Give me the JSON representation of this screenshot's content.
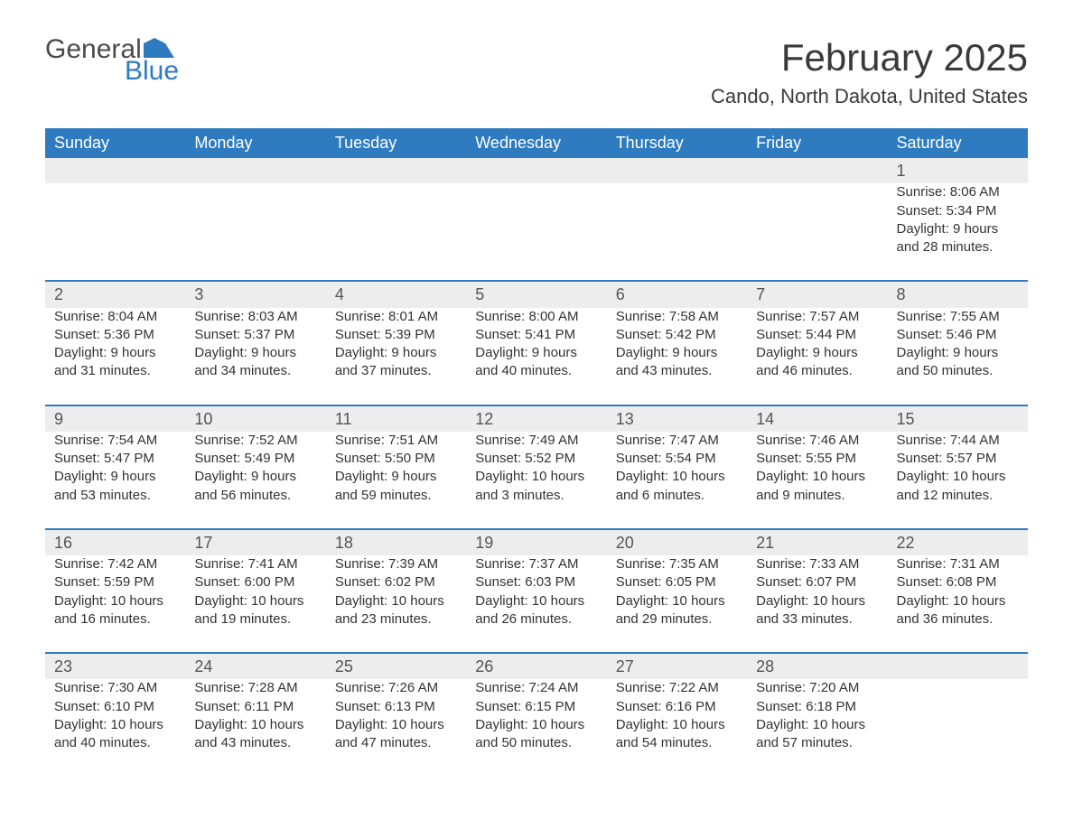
{
  "logo": {
    "general": "General",
    "blue": "Blue",
    "flag_color": "#2e7bbf"
  },
  "title": "February 2025",
  "subtitle": "Cando, North Dakota, United States",
  "colors": {
    "header_bg": "#2e7bbf",
    "header_text": "#ffffff",
    "daynum_bg": "#ededed",
    "text": "#333333",
    "page_bg": "#ffffff",
    "rule": "#2e7bbf"
  },
  "weekdays": [
    "Sunday",
    "Monday",
    "Tuesday",
    "Wednesday",
    "Thursday",
    "Friday",
    "Saturday"
  ],
  "weeks": [
    [
      null,
      null,
      null,
      null,
      null,
      null,
      {
        "d": "1",
        "sunrise": "Sunrise: 8:06 AM",
        "sunset": "Sunset: 5:34 PM",
        "day1": "Daylight: 9 hours",
        "day2": "and 28 minutes."
      }
    ],
    [
      {
        "d": "2",
        "sunrise": "Sunrise: 8:04 AM",
        "sunset": "Sunset: 5:36 PM",
        "day1": "Daylight: 9 hours",
        "day2": "and 31 minutes."
      },
      {
        "d": "3",
        "sunrise": "Sunrise: 8:03 AM",
        "sunset": "Sunset: 5:37 PM",
        "day1": "Daylight: 9 hours",
        "day2": "and 34 minutes."
      },
      {
        "d": "4",
        "sunrise": "Sunrise: 8:01 AM",
        "sunset": "Sunset: 5:39 PM",
        "day1": "Daylight: 9 hours",
        "day2": "and 37 minutes."
      },
      {
        "d": "5",
        "sunrise": "Sunrise: 8:00 AM",
        "sunset": "Sunset: 5:41 PM",
        "day1": "Daylight: 9 hours",
        "day2": "and 40 minutes."
      },
      {
        "d": "6",
        "sunrise": "Sunrise: 7:58 AM",
        "sunset": "Sunset: 5:42 PM",
        "day1": "Daylight: 9 hours",
        "day2": "and 43 minutes."
      },
      {
        "d": "7",
        "sunrise": "Sunrise: 7:57 AM",
        "sunset": "Sunset: 5:44 PM",
        "day1": "Daylight: 9 hours",
        "day2": "and 46 minutes."
      },
      {
        "d": "8",
        "sunrise": "Sunrise: 7:55 AM",
        "sunset": "Sunset: 5:46 PM",
        "day1": "Daylight: 9 hours",
        "day2": "and 50 minutes."
      }
    ],
    [
      {
        "d": "9",
        "sunrise": "Sunrise: 7:54 AM",
        "sunset": "Sunset: 5:47 PM",
        "day1": "Daylight: 9 hours",
        "day2": "and 53 minutes."
      },
      {
        "d": "10",
        "sunrise": "Sunrise: 7:52 AM",
        "sunset": "Sunset: 5:49 PM",
        "day1": "Daylight: 9 hours",
        "day2": "and 56 minutes."
      },
      {
        "d": "11",
        "sunrise": "Sunrise: 7:51 AM",
        "sunset": "Sunset: 5:50 PM",
        "day1": "Daylight: 9 hours",
        "day2": "and 59 minutes."
      },
      {
        "d": "12",
        "sunrise": "Sunrise: 7:49 AM",
        "sunset": "Sunset: 5:52 PM",
        "day1": "Daylight: 10 hours",
        "day2": "and 3 minutes."
      },
      {
        "d": "13",
        "sunrise": "Sunrise: 7:47 AM",
        "sunset": "Sunset: 5:54 PM",
        "day1": "Daylight: 10 hours",
        "day2": "and 6 minutes."
      },
      {
        "d": "14",
        "sunrise": "Sunrise: 7:46 AM",
        "sunset": "Sunset: 5:55 PM",
        "day1": "Daylight: 10 hours",
        "day2": "and 9 minutes."
      },
      {
        "d": "15",
        "sunrise": "Sunrise: 7:44 AM",
        "sunset": "Sunset: 5:57 PM",
        "day1": "Daylight: 10 hours",
        "day2": "and 12 minutes."
      }
    ],
    [
      {
        "d": "16",
        "sunrise": "Sunrise: 7:42 AM",
        "sunset": "Sunset: 5:59 PM",
        "day1": "Daylight: 10 hours",
        "day2": "and 16 minutes."
      },
      {
        "d": "17",
        "sunrise": "Sunrise: 7:41 AM",
        "sunset": "Sunset: 6:00 PM",
        "day1": "Daylight: 10 hours",
        "day2": "and 19 minutes."
      },
      {
        "d": "18",
        "sunrise": "Sunrise: 7:39 AM",
        "sunset": "Sunset: 6:02 PM",
        "day1": "Daylight: 10 hours",
        "day2": "and 23 minutes."
      },
      {
        "d": "19",
        "sunrise": "Sunrise: 7:37 AM",
        "sunset": "Sunset: 6:03 PM",
        "day1": "Daylight: 10 hours",
        "day2": "and 26 minutes."
      },
      {
        "d": "20",
        "sunrise": "Sunrise: 7:35 AM",
        "sunset": "Sunset: 6:05 PM",
        "day1": "Daylight: 10 hours",
        "day2": "and 29 minutes."
      },
      {
        "d": "21",
        "sunrise": "Sunrise: 7:33 AM",
        "sunset": "Sunset: 6:07 PM",
        "day1": "Daylight: 10 hours",
        "day2": "and 33 minutes."
      },
      {
        "d": "22",
        "sunrise": "Sunrise: 7:31 AM",
        "sunset": "Sunset: 6:08 PM",
        "day1": "Daylight: 10 hours",
        "day2": "and 36 minutes."
      }
    ],
    [
      {
        "d": "23",
        "sunrise": "Sunrise: 7:30 AM",
        "sunset": "Sunset: 6:10 PM",
        "day1": "Daylight: 10 hours",
        "day2": "and 40 minutes."
      },
      {
        "d": "24",
        "sunrise": "Sunrise: 7:28 AM",
        "sunset": "Sunset: 6:11 PM",
        "day1": "Daylight: 10 hours",
        "day2": "and 43 minutes."
      },
      {
        "d": "25",
        "sunrise": "Sunrise: 7:26 AM",
        "sunset": "Sunset: 6:13 PM",
        "day1": "Daylight: 10 hours",
        "day2": "and 47 minutes."
      },
      {
        "d": "26",
        "sunrise": "Sunrise: 7:24 AM",
        "sunset": "Sunset: 6:15 PM",
        "day1": "Daylight: 10 hours",
        "day2": "and 50 minutes."
      },
      {
        "d": "27",
        "sunrise": "Sunrise: 7:22 AM",
        "sunset": "Sunset: 6:16 PM",
        "day1": "Daylight: 10 hours",
        "day2": "and 54 minutes."
      },
      {
        "d": "28",
        "sunrise": "Sunrise: 7:20 AM",
        "sunset": "Sunset: 6:18 PM",
        "day1": "Daylight: 10 hours",
        "day2": "and 57 minutes."
      },
      null
    ]
  ]
}
